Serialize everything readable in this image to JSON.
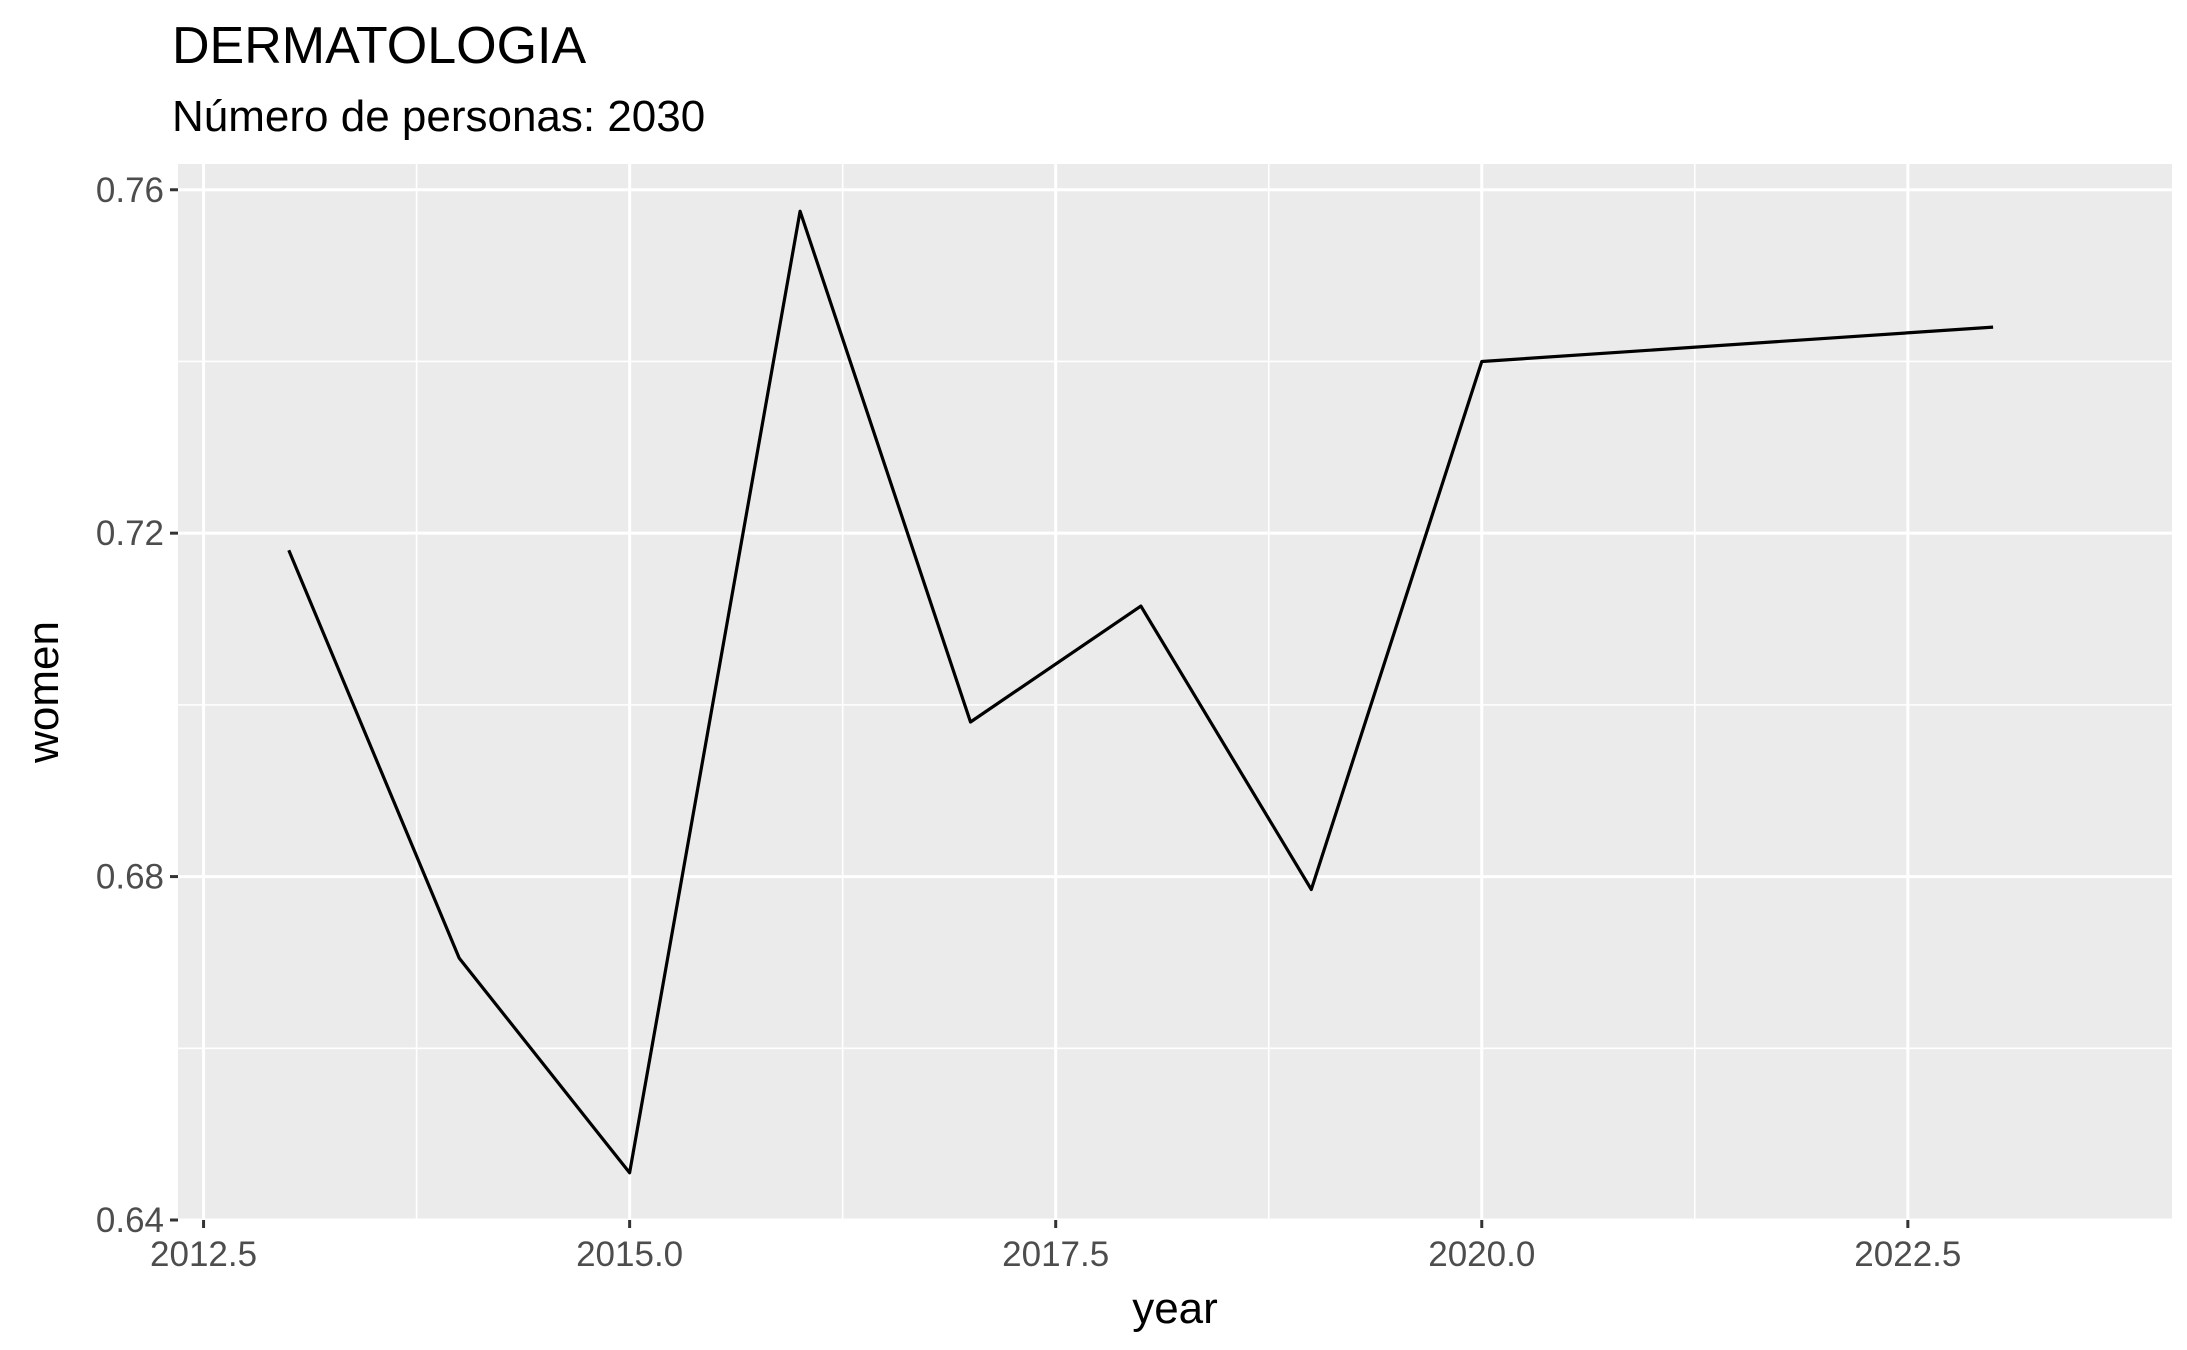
{
  "chart_data": {
    "type": "line",
    "title": "DERMATOLOGIA",
    "subtitle": "Número de personas: 2030",
    "xlabel": "year",
    "ylabel": "women",
    "xlim": [
      2012.35,
      2024.05
    ],
    "ylim": [
      0.64,
      0.763
    ],
    "x_ticks": [
      2012.5,
      2015.0,
      2017.5,
      2020.0,
      2022.5
    ],
    "x_tick_labels": [
      "2012.5",
      "2015.0",
      "2017.5",
      "2020.0",
      "2022.5"
    ],
    "y_ticks": [
      0.64,
      0.68,
      0.72,
      0.76
    ],
    "y_tick_labels": [
      "0.64",
      "0.68",
      "0.72",
      "0.76"
    ],
    "grid": true,
    "series": [
      {
        "x": [
          2013,
          2014,
          2015,
          2016,
          2017,
          2018,
          2019,
          2020,
          2023
        ],
        "values": [
          0.718,
          0.6705,
          0.6455,
          0.7575,
          0.698,
          0.7115,
          0.6785,
          0.74,
          0.744
        ]
      }
    ],
    "colors": {
      "panel": "#ebebeb",
      "grid": "#ffffff",
      "line": "#000000",
      "tick_text": "#4d4d4d"
    }
  }
}
